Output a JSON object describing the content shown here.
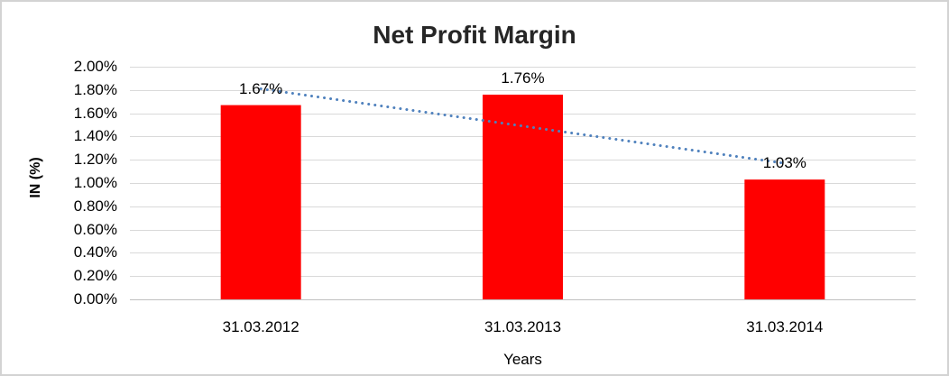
{
  "chart_data": {
    "type": "bar",
    "title": "Net Profit Margin",
    "xlabel": "Years",
    "ylabel": "IN (%)",
    "categories": [
      "31.03.2012",
      "31.03.2013",
      "31.03.2014"
    ],
    "values": [
      1.67,
      1.76,
      1.03
    ],
    "data_labels": [
      "1.67%",
      "1.76%",
      "1.03%"
    ],
    "ylim": [
      0,
      2
    ],
    "ytick_step": 0.2,
    "ytick_labels": [
      "0.00%",
      "0.20%",
      "0.40%",
      "0.60%",
      "0.80%",
      "1.00%",
      "1.20%",
      "1.40%",
      "1.60%",
      "1.80%",
      "2.00%"
    ],
    "grid": true,
    "legend": "none",
    "bar_color": "#FF0000",
    "trendline": {
      "type": "linear",
      "style": "dotted",
      "color": "#4F81BD",
      "values_at_categories": [
        1.81,
        1.49,
        1.17
      ]
    },
    "colors": {
      "gridline": "#D9D9D9",
      "axis_line": "#BFBFBF",
      "title_text": "#262626",
      "label_text": "#000000",
      "frame_border": "#D3D3D3",
      "background": "#FFFFFF"
    }
  }
}
